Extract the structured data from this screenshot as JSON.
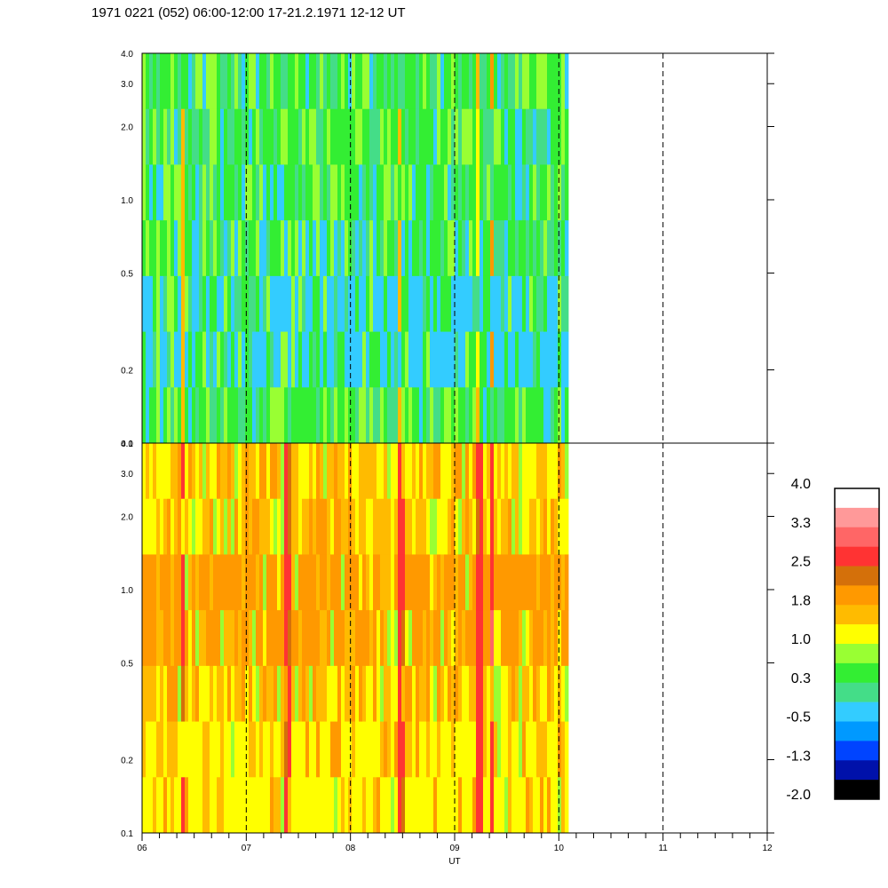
{
  "title": "1971 0221 (052) 06:00-12:00 17-21.2.1971 12-12 UT",
  "chart_data": {
    "type": "heatmap",
    "xlabel": "UT",
    "ylabel": "",
    "x_ticks": [
      "06",
      "07",
      "08",
      "09",
      "10",
      "11",
      "12"
    ],
    "x_range": [
      6,
      12
    ],
    "data_end_hour": 10.06,
    "y_scale": "log",
    "y_range": [
      0.1,
      4.0
    ],
    "y_ticks": [
      "0.1",
      "0.2",
      "0.5",
      "1.0",
      "2.0",
      "3.0",
      "4.0"
    ],
    "hour_lines": [
      7,
      8,
      9,
      10,
      11
    ],
    "colorbar": {
      "range": [
        -2.0,
        4.0
      ],
      "tick_labels": [
        "4.0",
        "3.3",
        "2.5",
        "1.8",
        "1.0",
        "0.3",
        "-0.5",
        "-1.3",
        "-2.0"
      ],
      "colors_top_to_bottom": [
        "#ffffff",
        "#ff9999",
        "#ff6666",
        "#ff3333",
        "#d4700a",
        "#ff9900",
        "#ffbb00",
        "#ffff00",
        "#99ff33",
        "#33ee33",
        "#44dd88",
        "#33ccff",
        "#0099ff",
        "#0044ff",
        "#0011aa",
        "#000000"
      ]
    },
    "panels": [
      {
        "name": "",
        "dominant_levels": [
          0.3,
          0.7,
          -0.2
        ],
        "events": [
          {
            "hour": 6.38,
            "level": 1.5
          },
          {
            "hour": 8.45,
            "level": 1.5
          },
          {
            "hour": 9.2,
            "level": 1.3
          },
          {
            "hour": 9.33,
            "level": 1.8
          }
        ]
      },
      {
        "name": "",
        "dominant_levels": [
          1.4,
          1.8,
          1.0
        ],
        "events": [
          {
            "hour": 6.38,
            "level": 2.6
          },
          {
            "hour": 7.38,
            "level": 2.6
          },
          {
            "hour": 8.47,
            "level": 2.6
          },
          {
            "hour": 9.22,
            "level": 2.6
          },
          {
            "hour": 9.34,
            "level": 2.8
          }
        ]
      }
    ]
  }
}
